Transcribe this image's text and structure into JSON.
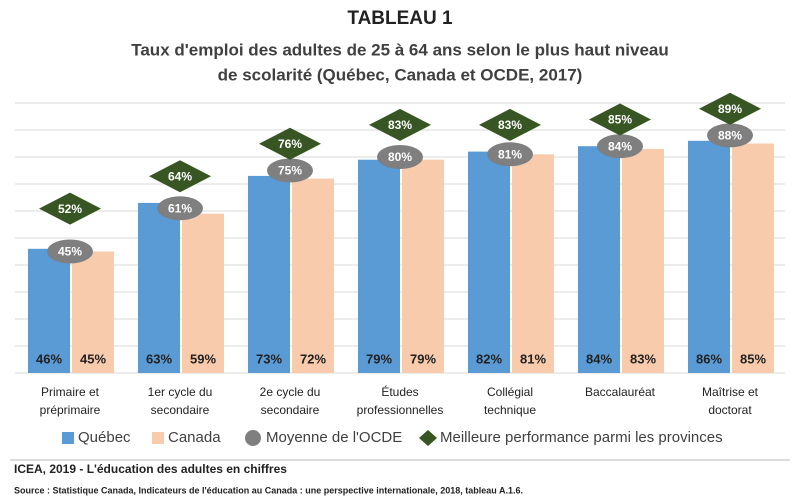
{
  "chart_data": {
    "type": "bar",
    "title": "TABLEAU 1",
    "subtitle": [
      "Taux d'emploi des adultes de 25 à 64 ans selon le plus haut niveau",
      "de scolarité (Québec, Canada et OCDE, 2017)"
    ],
    "categories": [
      [
        "Primaire et",
        "préprimaire"
      ],
      [
        "1er cycle du",
        "secondaire"
      ],
      [
        "2e cycle du",
        "secondaire"
      ],
      [
        "Études",
        "professionnelles"
      ],
      [
        "Collégial",
        "technique"
      ],
      [
        "Baccalauréat"
      ],
      [
        "Maîtrise et",
        "doctorat"
      ]
    ],
    "series": [
      {
        "name": "Québec",
        "color": "#5b9bd5",
        "marker": "bar",
        "values": [
          46,
          63,
          73,
          79,
          82,
          84,
          86
        ],
        "value_labels": [
          "46%",
          "63%",
          "73%",
          "79%",
          "82%",
          "84%",
          "86%"
        ]
      },
      {
        "name": "Canada",
        "color": "#f8cbad",
        "marker": "bar",
        "values": [
          45,
          59,
          72,
          79,
          81,
          83,
          85
        ],
        "value_labels": [
          "45%",
          "59%",
          "72%",
          "79%",
          "81%",
          "83%",
          "85%"
        ]
      },
      {
        "name": "Moyenne de l'OCDE",
        "color": "#7f7f7f",
        "marker": "ellipse",
        "values": [
          45,
          61,
          75,
          80,
          81,
          84,
          88
        ],
        "value_labels": [
          "45%",
          "61%",
          "75%",
          "80%",
          "81%",
          "84%",
          "88%"
        ]
      },
      {
        "name": "Meilleure performance parmi les provinces",
        "color": "#375623",
        "marker": "diamond",
        "values": [
          52,
          64,
          76,
          83,
          83,
          85,
          89
        ],
        "value_labels": [
          "52%",
          "64%",
          "76%",
          "83%",
          "83%",
          "85%",
          "89%"
        ]
      }
    ],
    "ylim": [
      0,
      100
    ],
    "yticks": [
      0,
      10,
      20,
      30,
      40,
      50,
      60,
      70,
      80,
      90,
      100
    ],
    "grid": true,
    "note": "ICEA, 2019 - L'éducation des adultes en chiffres",
    "source": "Source : Statistique Canada, Indicateurs de l'éducation au Canada : une perspective internationale, 2018, tableau A.1.6."
  }
}
